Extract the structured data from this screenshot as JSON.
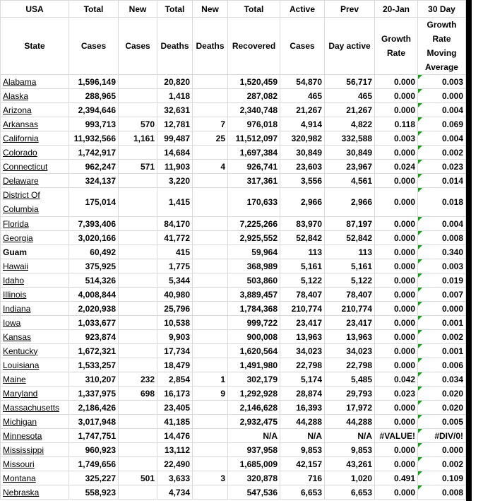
{
  "header": [
    [
      "USA",
      "Total",
      "New",
      "Total",
      "New",
      "Total",
      "Active",
      "Prev",
      "20-Jan",
      "30 Day"
    ],
    [
      "State",
      "Cases",
      "Cases",
      "Deaths",
      "Deaths",
      "Recovered",
      "Cases",
      "Day active",
      "Growth Rate",
      "Growth Rate Moving Average"
    ]
  ],
  "rows": [
    {
      "state": "Alabama",
      "cells": [
        "1,596,149",
        null,
        "20,820",
        null,
        "1,520,459",
        "54,870",
        "56,717",
        "0.000",
        "0.003"
      ]
    },
    {
      "state": "Alaska",
      "cells": [
        "288,965",
        null,
        "1,418",
        null,
        "287,082",
        "465",
        "465",
        "0.000",
        "0.000"
      ]
    },
    {
      "state": "Arizona",
      "cells": [
        "2,394,646",
        null,
        "32,631",
        null,
        "2,340,748",
        "21,267",
        "21,267",
        "0.000",
        "0.004"
      ]
    },
    {
      "state": "Arkansas",
      "cells": [
        "993,713",
        "570",
        "12,781",
        "7",
        "976,018",
        "4,914",
        "4,822",
        "0.118",
        "0.069"
      ]
    },
    {
      "state": "California",
      "cells": [
        "11,932,566",
        "1,161",
        "99,487",
        "25",
        "11,512,097",
        "320,982",
        "332,588",
        "0.003",
        "0.004"
      ]
    },
    {
      "state": "Colorado",
      "cells": [
        "1,742,917",
        null,
        "14,684",
        null,
        "1,697,384",
        "30,849",
        "30,849",
        "0.000",
        "0.002"
      ]
    },
    {
      "state": "Connecticut",
      "cells": [
        "962,247",
        "571",
        "11,903",
        "4",
        "926,741",
        "23,603",
        "23,967",
        "0.024",
        "0.023"
      ]
    },
    {
      "state": "Delaware",
      "cells": [
        "324,137",
        null,
        "3,220",
        null,
        "317,361",
        "3,556",
        "4,561",
        "0.000",
        "0.014"
      ]
    },
    {
      "state": "District Of Columbia",
      "cells": [
        "175,014",
        null,
        "1,415",
        null,
        "170,633",
        "2,966",
        "2,966",
        "0.000",
        "0.018"
      ]
    },
    {
      "state": "Florida",
      "cells": [
        "7,393,406",
        null,
        "84,170",
        null,
        "7,225,266",
        "83,970",
        "87,197",
        "0.000",
        "0.004"
      ]
    },
    {
      "state": "Georgia",
      "cells": [
        "3,020,166",
        null,
        "41,772",
        null,
        "2,925,552",
        "52,842",
        "52,842",
        "0.000",
        "0.008"
      ]
    },
    {
      "state": "Guam",
      "cells": [
        "60,492",
        null,
        "415",
        null,
        "59,964",
        "113",
        "113",
        "0.000",
        "0.340"
      ]
    },
    {
      "state": "Hawaii",
      "cells": [
        "375,925",
        null,
        "1,775",
        null,
        "368,989",
        "5,161",
        "5,161",
        "0.000",
        "0.003"
      ]
    },
    {
      "state": "Idaho",
      "cells": [
        "514,326",
        null,
        "5,344",
        null,
        "503,860",
        "5,122",
        "5,122",
        "0.000",
        "0.019"
      ]
    },
    {
      "state": "Illinois",
      "cells": [
        "4,008,844",
        null,
        "40,980",
        null,
        "3,889,457",
        "78,407",
        "78,407",
        "0.000",
        "0.007"
      ]
    },
    {
      "state": "Indiana",
      "cells": [
        "2,020,938",
        null,
        "25,796",
        null,
        "1,784,368",
        "210,774",
        "210,774",
        "0.000",
        "0.000"
      ]
    },
    {
      "state": "Iowa",
      "cells": [
        "1,033,677",
        null,
        "10,538",
        null,
        "999,722",
        "23,417",
        "23,417",
        "0.000",
        "0.001"
      ]
    },
    {
      "state": "Kansas",
      "cells": [
        "923,874",
        null,
        "9,903",
        null,
        "900,008",
        "13,963",
        "13,963",
        "0.000",
        "0.002"
      ]
    },
    {
      "state": "Kentucky",
      "cells": [
        "1,672,321",
        null,
        "17,734",
        null,
        "1,620,564",
        "34,023",
        "34,023",
        "0.000",
        "0.001"
      ]
    },
    {
      "state": "Louisiana",
      "cells": [
        "1,533,257",
        null,
        "18,479",
        null,
        "1,491,980",
        "22,798",
        "22,798",
        "0.000",
        "0.006"
      ]
    },
    {
      "state": "Maine",
      "cells": [
        "310,207",
        "232",
        "2,854",
        "1",
        "302,179",
        "5,174",
        "5,485",
        "0.042",
        "0.034"
      ]
    },
    {
      "state": "Maryland",
      "cells": [
        "1,337,975",
        "698",
        "16,173",
        "9",
        "1,292,928",
        "28,874",
        "29,793",
        "0.023",
        "0.020"
      ]
    },
    {
      "state": "Massachusetts",
      "cells": [
        "2,186,426",
        null,
        "23,405",
        null,
        "2,146,628",
        "16,393",
        "17,972",
        "0.000",
        "0.020"
      ]
    },
    {
      "state": "Michigan",
      "cells": [
        "3,017,948",
        null,
        "41,185",
        null,
        "2,932,475",
        "44,288",
        "44,288",
        "0.000",
        "0.005"
      ]
    },
    {
      "state": "Minnesota",
      "cells": [
        "1,747,751",
        null,
        "14,476",
        null,
        "N/A",
        "N/A",
        "N/A",
        "#VALUE!",
        "#DIV/0!"
      ]
    },
    {
      "state": "Mississippi",
      "cells": [
        "960,923",
        null,
        "13,112",
        null,
        "937,958",
        "9,853",
        "9,853",
        "0.000",
        "0.000"
      ]
    },
    {
      "state": "Missouri",
      "cells": [
        "1,749,656",
        null,
        "22,490",
        null,
        "1,685,009",
        "42,157",
        "43,261",
        "0.000",
        "0.002"
      ]
    },
    {
      "state": "Montana",
      "cells": [
        "325,227",
        "501",
        "3,633",
        "3",
        "320,878",
        "716",
        "1,020",
        "0.491",
        "0.109"
      ]
    },
    {
      "state": "Nebraska",
      "cells": [
        "558,923",
        null,
        "4,734",
        null,
        "547,536",
        "6,653",
        "6,653",
        "0.000",
        "0.008"
      ]
    }
  ]
}
